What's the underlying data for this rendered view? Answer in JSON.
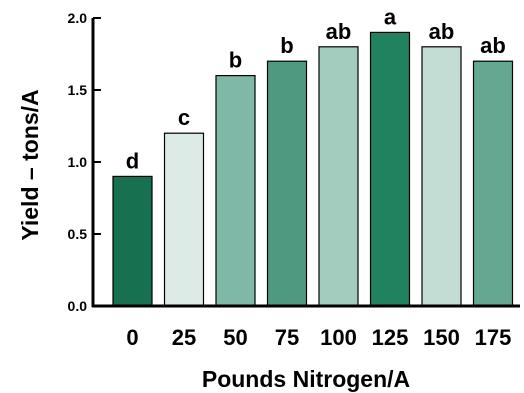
{
  "chart_data": {
    "type": "bar",
    "title": "",
    "xlabel": "Pounds Nitrogen/A",
    "ylabel": "Yield – tons/A",
    "ylim": [
      0,
      2.0
    ],
    "yticks": [
      0.0,
      0.5,
      1.0,
      1.5,
      2.0
    ],
    "ytick_labels": [
      "0.0",
      "0.5",
      "1.0",
      "1.5",
      "2.0"
    ],
    "categories": [
      "0",
      "25",
      "50",
      "75",
      "100",
      "125",
      "150",
      "175"
    ],
    "values": [
      0.9,
      1.2,
      1.6,
      1.7,
      1.8,
      1.9,
      1.8,
      1.7
    ],
    "annotations": [
      "d",
      "c",
      "b",
      "b",
      "ab",
      "a",
      "ab",
      "ab"
    ],
    "bar_colors": [
      "#17704f",
      "#dcebe5",
      "#7fb8a6",
      "#4f9981",
      "#a3ccbf",
      "#218260",
      "#c3ddd4",
      "#65a891"
    ],
    "bar_edge_color": "#000000",
    "grid": false,
    "legend": "none"
  }
}
